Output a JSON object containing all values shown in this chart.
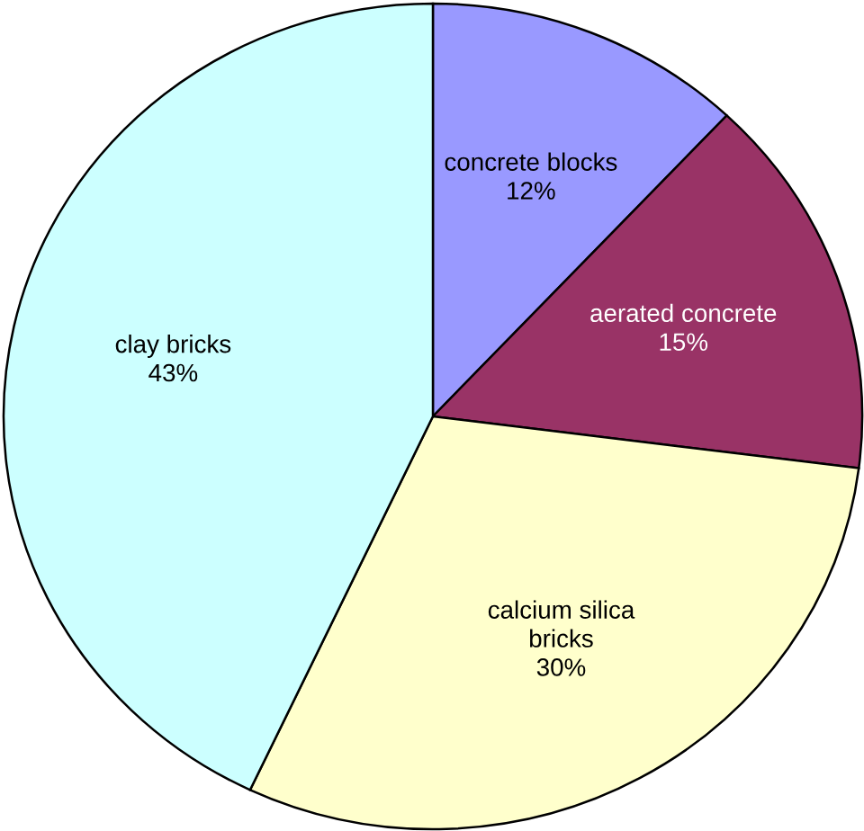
{
  "chart_data": {
    "type": "pie",
    "categories": [
      "concrete blocks",
      "aerated concrete",
      "calcium silica\nbricks",
      "clay bricks"
    ],
    "values": [
      12,
      15,
      30,
      43
    ],
    "value_labels": [
      "12%",
      "15%",
      "30%",
      "43%"
    ],
    "colors": [
      "#9999ff",
      "#993366",
      "#ffffcc",
      "#ccffff"
    ],
    "legend": false
  }
}
